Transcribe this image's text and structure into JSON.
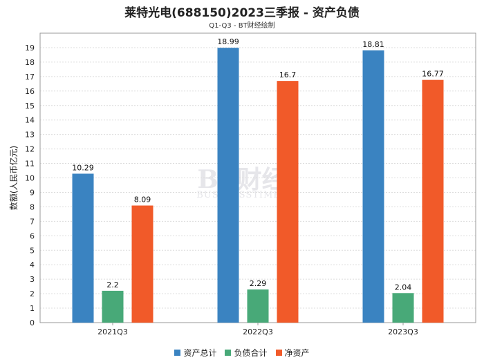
{
  "chart_data": {
    "type": "bar",
    "title": "莱特光电(688150)2023三季报 - 资产负债",
    "subtitle": "Q1-Q3 - BT财经绘制",
    "xlabel": "",
    "ylabel": "数额(人民币亿元)",
    "ylim": [
      0,
      20
    ],
    "yticks": [
      0,
      1,
      2,
      3,
      4,
      5,
      6,
      7,
      8,
      9,
      10,
      11,
      12,
      13,
      14,
      15,
      16,
      17,
      18,
      19
    ],
    "categories": [
      "2021Q3",
      "2022Q3",
      "2023Q3"
    ],
    "series": [
      {
        "name": "资产总计",
        "color": "#3a83c1",
        "values": [
          10.29,
          18.99,
          18.81
        ],
        "labels": [
          "10.29",
          "18.99",
          "18.81"
        ]
      },
      {
        "name": "负债合计",
        "color": "#48a978",
        "values": [
          2.2,
          2.29,
          2.04
        ],
        "labels": [
          "2.2",
          "2.29",
          "2.04"
        ]
      },
      {
        "name": "净资产",
        "color": "#f15a29",
        "values": [
          8.09,
          16.7,
          16.77
        ],
        "labels": [
          "8.09",
          "16.7",
          "16.77"
        ]
      }
    ],
    "legend_position": "bottom",
    "watermark": {
      "main": "BT财经",
      "sub": "BUSINESSTIMES"
    }
  }
}
